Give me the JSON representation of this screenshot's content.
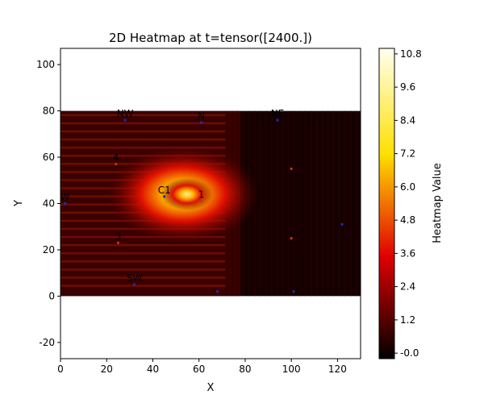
{
  "chart_data": {
    "type": "heatmap",
    "title": "2D Heatmap at t=tensor([2400.])",
    "xlabel": "X",
    "ylabel": "Y",
    "xlim": [
      0,
      130
    ],
    "ylim": [
      -27,
      107
    ],
    "xticks": [
      "0",
      "20",
      "40",
      "60",
      "80",
      "100",
      "120"
    ],
    "yticks": [
      "-20",
      "0",
      "20",
      "40",
      "60",
      "80",
      "100"
    ],
    "heat_extent": {
      "x": [
        0,
        130
      ],
      "y": [
        0,
        80
      ]
    },
    "heat_peak": {
      "x": 53,
      "y": 44,
      "value": 10.8
    },
    "colorbar": {
      "label": "Heatmap Value",
      "range": [
        -0.2,
        11.0
      ],
      "ticks": [
        "-0.0",
        "1.2",
        "2.4",
        "3.6",
        "4.8",
        "6.0",
        "7.2",
        "8.4",
        "9.6",
        "10.8"
      ],
      "colormap": "hot"
    },
    "markers": [
      {
        "label": "NW",
        "x": 28,
        "y": 76,
        "color": "#1f2bbf"
      },
      {
        "label": "N",
        "x": 61,
        "y": 75,
        "color": "#1f2bbf"
      },
      {
        "label": "NE",
        "x": 94,
        "y": 76,
        "color": "#1f2bbf"
      },
      {
        "label": "4",
        "x": 24,
        "y": 57,
        "color": "#d62728"
      },
      {
        "label": "C1",
        "x": 45,
        "y": 43,
        "color": "#1f2bbf"
      },
      {
        "label": "1",
        "x": 61,
        "y": 41,
        "color": "#d62728"
      },
      {
        "label": "W",
        "x": 2,
        "y": 40,
        "color": "#1f2bbf"
      },
      {
        "label": "3",
        "x": 25,
        "y": 23,
        "color": "#d62728"
      },
      {
        "label": "SW",
        "x": 32,
        "y": 5,
        "color": "#1f2bbf"
      },
      {
        "label": "",
        "x": 100,
        "y": 55,
        "color": "#d62728"
      },
      {
        "label": "",
        "x": 100,
        "y": 25,
        "color": "#d62728"
      },
      {
        "label": "",
        "x": 122,
        "y": 31,
        "color": "#1f2bbf"
      },
      {
        "label": "",
        "x": 68,
        "y": 2,
        "color": "#1f2bbf"
      },
      {
        "label": "",
        "x": 101,
        "y": 2,
        "color": "#1f2bbf"
      }
    ]
  }
}
